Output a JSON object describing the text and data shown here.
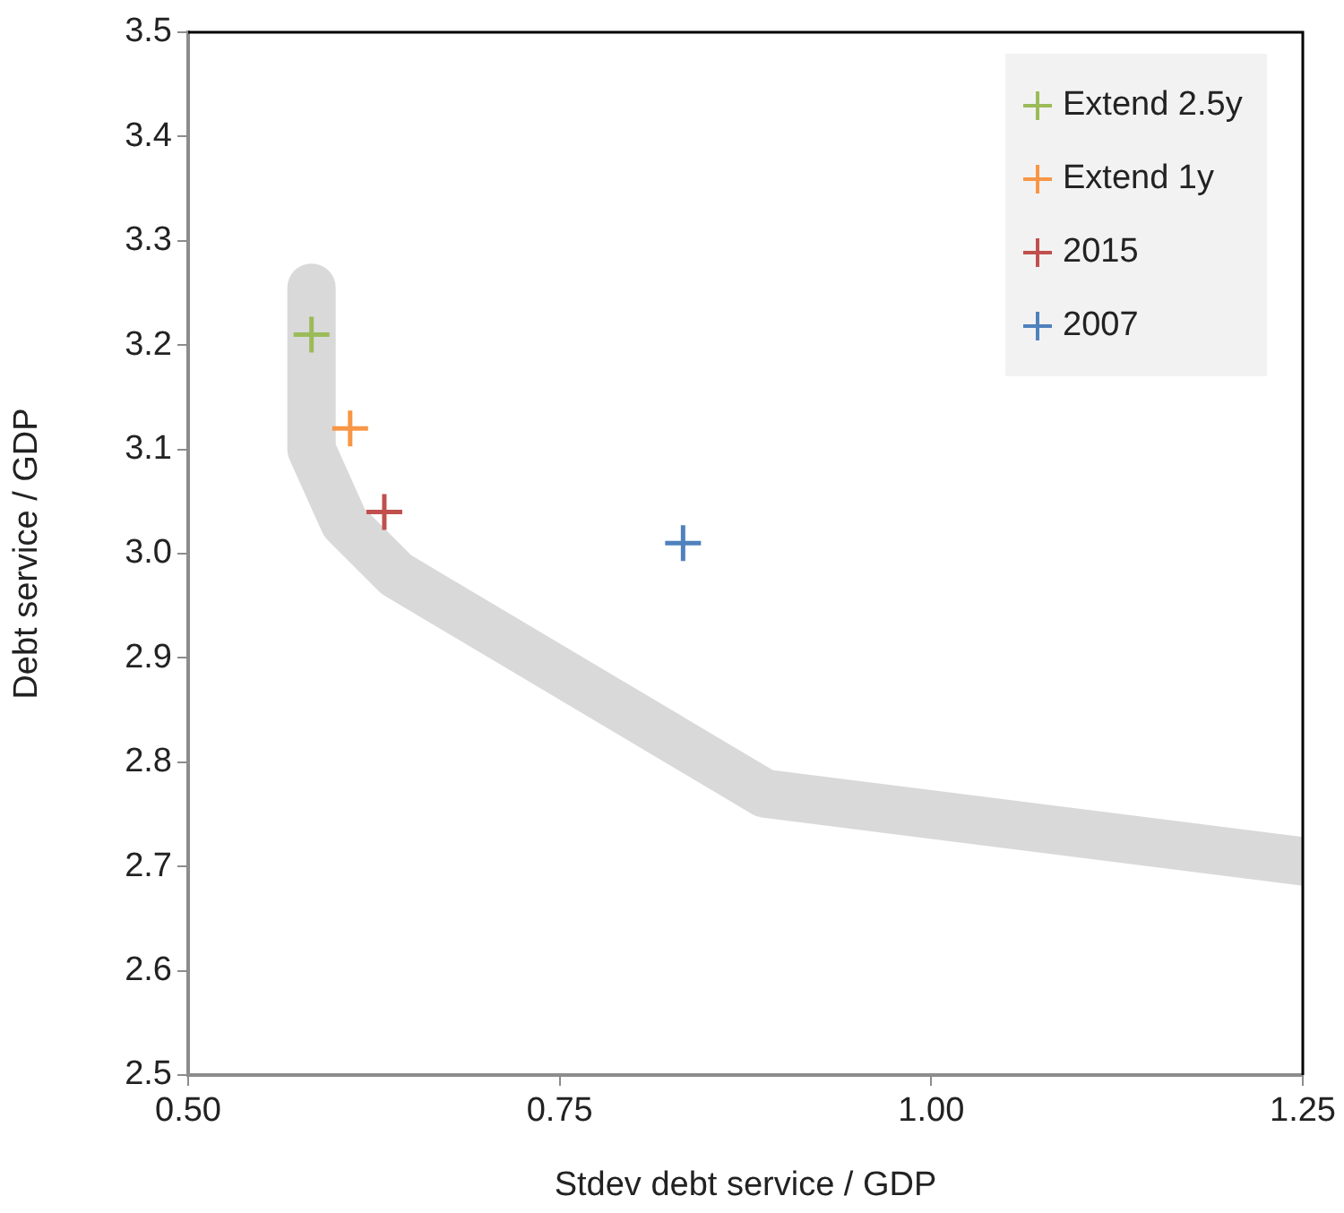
{
  "chart_data": {
    "type": "scatter",
    "xlabel": "Stdev debt service / GDP",
    "ylabel": "Debt service / GDP",
    "xlim": [
      0.5,
      1.25
    ],
    "xticks": [
      {
        "value": 0.5,
        "label": "0.50"
      },
      {
        "value": 0.75,
        "label": "0.75"
      },
      {
        "value": 1,
        "label": "1.00"
      },
      {
        "value": 1.25,
        "label": "1.25"
      }
    ],
    "ylim": [
      2.5,
      3.5
    ],
    "yticks": [
      {
        "value": 2.5,
        "label": "2.5"
      },
      2.6,
      2.7,
      2.8,
      2.9,
      {
        "value": 3,
        "label": "3.0"
      },
      3.1,
      3.2,
      3.3,
      3.4,
      3.5
    ],
    "grid": false,
    "legend": "top right",
    "marker": "cross",
    "series": [
      {
        "type": "line",
        "color": "#d9d9d9",
        "marker": "none",
        "x": [
          0.583,
          0.583,
          0.605,
          0.64,
          0.888,
          1.25
        ],
        "values": [
          3.255,
          3.1,
          3.03,
          2.98,
          2.77,
          2.705
        ]
      },
      {
        "name": "Extend 2.5y",
        "color": "#9bbb59",
        "x": [
          0.583
        ],
        "values": [
          3.21
        ]
      },
      {
        "name": "Extend 1y",
        "color": "#f79646",
        "x": [
          0.609
        ],
        "values": [
          3.12
        ]
      },
      {
        "name": "2015",
        "color": "#c0504d",
        "x": [
          0.632
        ],
        "values": [
          3.04
        ]
      },
      {
        "name": "2007",
        "color": "#4f81bd",
        "x": [
          0.833
        ],
        "values": [
          3.01
        ]
      }
    ]
  }
}
